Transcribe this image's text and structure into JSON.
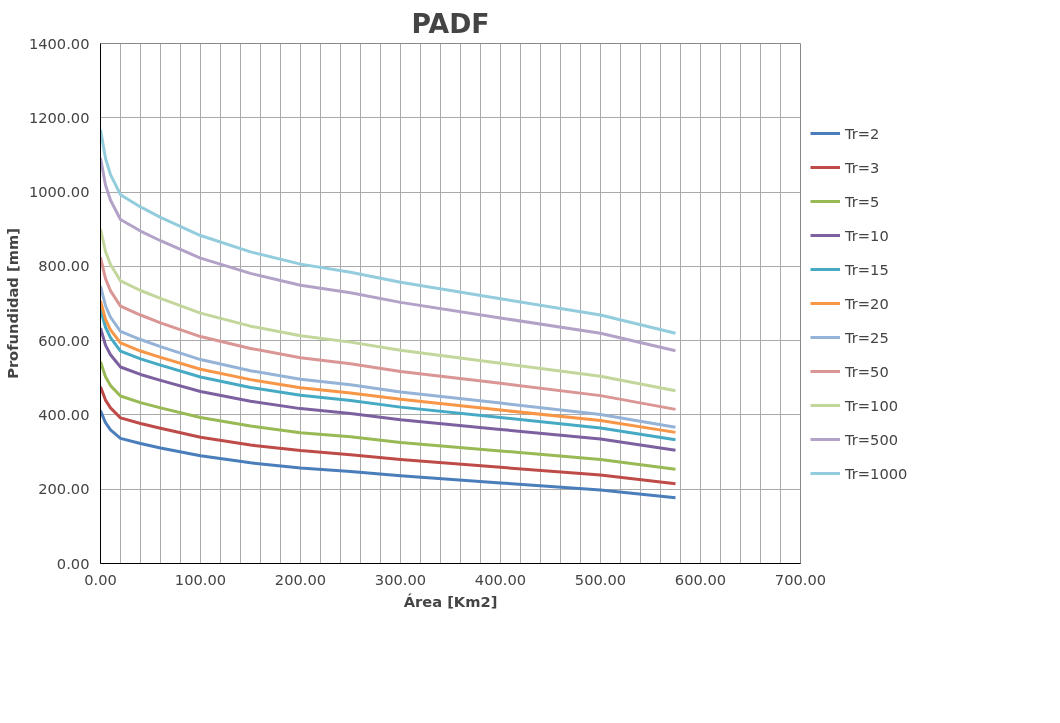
{
  "chart_data": {
    "type": "line",
    "title": "PADF",
    "xlabel": "Área [Km2]",
    "ylabel": "Profundidad [mm]",
    "x": [
      0,
      5,
      10,
      20,
      40,
      60,
      100,
      150,
      200,
      250,
      300,
      400,
      500,
      575
    ],
    "series": [
      {
        "name": "Tr=2",
        "color": "#4a7ebb",
        "values": [
          412,
          379,
          360,
          337,
          323,
          311,
          290,
          271,
          257,
          248,
          236,
          217,
          198,
          177
        ]
      },
      {
        "name": "Tr=3",
        "color": "#be4b48",
        "values": [
          476,
          440,
          419,
          392,
          377,
          364,
          340,
          319,
          304,
          293,
          280,
          259,
          238,
          215
        ]
      },
      {
        "name": "Tr=5",
        "color": "#98b954",
        "values": [
          543,
          503,
          479,
          451,
          433,
          419,
          393,
          370,
          352,
          341,
          326,
          303,
          280,
          254
        ]
      },
      {
        "name": "Tr=10",
        "color": "#7d60a0",
        "values": [
          634,
          588,
          562,
          529,
          509,
          493,
          463,
          437,
          417,
          404,
          387,
          361,
          335,
          305
        ]
      },
      {
        "name": "Tr=15",
        "color": "#46aac5",
        "values": [
          685,
          636,
          608,
          572,
          551,
          534,
          502,
          474,
          453,
          439,
          421,
          393,
          365,
          333
        ]
      },
      {
        "name": "Tr=20",
        "color": "#f79646",
        "values": [
          707,
          657,
          629,
          594,
          572,
          555,
          523,
          495,
          473,
          459,
          442,
          413,
          385,
          353
        ]
      },
      {
        "name": "Tr=25",
        "color": "#95b3d7",
        "values": [
          747,
          694,
          663,
          625,
          603,
          584,
          549,
          519,
          496,
          481,
          462,
          432,
          401,
          367
        ]
      },
      {
        "name": "Tr=50",
        "color": "#d99694",
        "values": [
          824,
          767,
          734,
          693,
          669,
          648,
          611,
          579,
          554,
          538,
          517,
          485,
          452,
          415
        ]
      },
      {
        "name": "Tr=100",
        "color": "#c3d69b",
        "values": [
          901,
          840,
          805,
          761,
          735,
          714,
          674,
          639,
          613,
          596,
          574,
          539,
          504,
          465
        ]
      },
      {
        "name": "Tr=500",
        "color": "#b3a2c7",
        "values": [
          1092,
          1019,
          978,
          926,
          895,
          869,
          822,
          781,
          749,
          729,
          703,
          661,
          620,
          573
        ]
      },
      {
        "name": "Tr=1000",
        "color": "#93cddd",
        "values": [
          1168,
          1091,
          1047,
          993,
          960,
          932,
          883,
          839,
          806,
          784,
          757,
          713,
          669,
          620
        ]
      }
    ],
    "xlim": [
      0,
      700
    ],
    "ylim": [
      0,
      1400
    ],
    "xticks": [
      {
        "value": 0,
        "label": "0.00"
      },
      {
        "value": 20,
        "label": null
      },
      {
        "value": 40,
        "label": null
      },
      {
        "value": 60,
        "label": null
      },
      {
        "value": 80,
        "label": null
      },
      {
        "value": 100,
        "label": "100.00"
      },
      {
        "value": 120,
        "label": null
      },
      {
        "value": 140,
        "label": null
      },
      {
        "value": 160,
        "label": null
      },
      {
        "value": 180,
        "label": null
      },
      {
        "value": 200,
        "label": "200.00"
      },
      {
        "value": 220,
        "label": null
      },
      {
        "value": 240,
        "label": null
      },
      {
        "value": 260,
        "label": null
      },
      {
        "value": 280,
        "label": null
      },
      {
        "value": 300,
        "label": "300.00"
      },
      {
        "value": 320,
        "label": null
      },
      {
        "value": 340,
        "label": null
      },
      {
        "value": 360,
        "label": null
      },
      {
        "value": 380,
        "label": null
      },
      {
        "value": 400,
        "label": "400.00"
      },
      {
        "value": 420,
        "label": null
      },
      {
        "value": 440,
        "label": null
      },
      {
        "value": 460,
        "label": null
      },
      {
        "value": 480,
        "label": null
      },
      {
        "value": 500,
        "label": "500.00"
      },
      {
        "value": 520,
        "label": null
      },
      {
        "value": 540,
        "label": null
      },
      {
        "value": 560,
        "label": null
      },
      {
        "value": 580,
        "label": null
      },
      {
        "value": 600,
        "label": "600.00"
      },
      {
        "value": 620,
        "label": null
      },
      {
        "value": 640,
        "label": null
      },
      {
        "value": 660,
        "label": null
      },
      {
        "value": 680,
        "label": null
      },
      {
        "value": 700,
        "label": "700.00"
      }
    ],
    "yticks": [
      {
        "value": 0,
        "label": "0.00"
      },
      {
        "value": 200,
        "label": "200.00"
      },
      {
        "value": 400,
        "label": "400.00"
      },
      {
        "value": 600,
        "label": "600.00"
      },
      {
        "value": 800,
        "label": "800.00"
      },
      {
        "value": 1000,
        "label": "1000.00"
      },
      {
        "value": 1200,
        "label": "1200.00"
      },
      {
        "value": 1400,
        "label": "1400.00"
      }
    ],
    "grid": true,
    "legend": "right",
    "marker": "none",
    "line_style": "solid"
  }
}
